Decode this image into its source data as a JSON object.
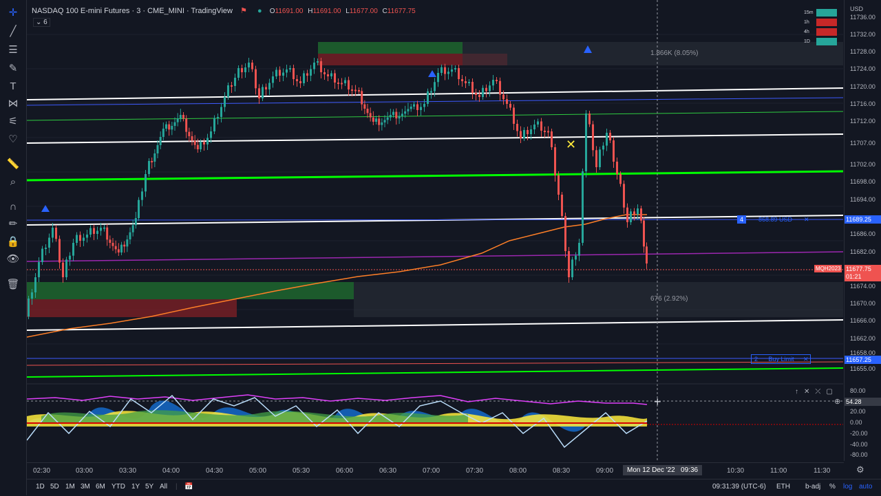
{
  "header": {
    "symbol_title": "NASDAQ 100 E-mini Futures · 3 · CME_MINI · TradingView",
    "o_label": "O",
    "o_value": "11691.00",
    "h_label": "H",
    "h_value": "11691.00",
    "l_label": "L",
    "l_value": "11677.00",
    "c_label": "C",
    "c_value": "11677.75",
    "indicators_count": "6",
    "currency": "USD"
  },
  "price_axis": {
    "labels": [
      "11736.00",
      "11732.00",
      "11728.00",
      "11724.00",
      "11720.00",
      "11716.00",
      "11712.00",
      "11707.00",
      "11702.00",
      "11698.00",
      "11694.00",
      "11689.25",
      "11686.00",
      "11682.00",
      "11677.75",
      "11674.00",
      "11670.00",
      "11666.00",
      "11662.00",
      "11658.00",
      "11657.25",
      "11655.00"
    ],
    "current_symbol_tag": "MQH2023",
    "current_price": "11677.75",
    "countdown": "01:21"
  },
  "oscillator_axis": {
    "labels": [
      "80.00",
      "54.28",
      "20.00",
      "0.00",
      "-20.00",
      "-40.00",
      "-60.00",
      "-80.00"
    ]
  },
  "measurements": {
    "top": "1.866K (8.05%)",
    "bottom": "676 (2.92%)"
  },
  "orders": {
    "position_qty": "4",
    "position_pnl": "-868.89 USD",
    "position_price": "11689.25",
    "limit_qty": "2",
    "limit_label": "Buy Limit",
    "limit_price": "11657.25"
  },
  "mtf_table": [
    "15m",
    "1h",
    "4h",
    "1D"
  ],
  "time_axis": {
    "labels": [
      "02:30",
      "03:00",
      "03:30",
      "04:00",
      "04:30",
      "05:00",
      "05:30",
      "06:00",
      "06:30",
      "07:00",
      "07:30",
      "08:00",
      "08:30",
      "09:00",
      "10:30",
      "11:00",
      "11:30"
    ],
    "crosshair_label": "Mon 12 Dec '22   09:36"
  },
  "bottom_bar": {
    "timeframes": [
      "1D",
      "5D",
      "1M",
      "3M",
      "6M",
      "YTD",
      "1Y",
      "5Y",
      "All"
    ],
    "clock": "09:31:39 (UTC-6)",
    "session": "ETH",
    "adj": "b-adj",
    "pct": "%",
    "log": "log",
    "auto": "auto"
  },
  "colors": {
    "bg": "#131722",
    "up": "#26a69a",
    "down": "#ef5350",
    "green_line": "#00ff00",
    "white_line": "#ffffff",
    "vwap": "#ff7f27"
  }
}
